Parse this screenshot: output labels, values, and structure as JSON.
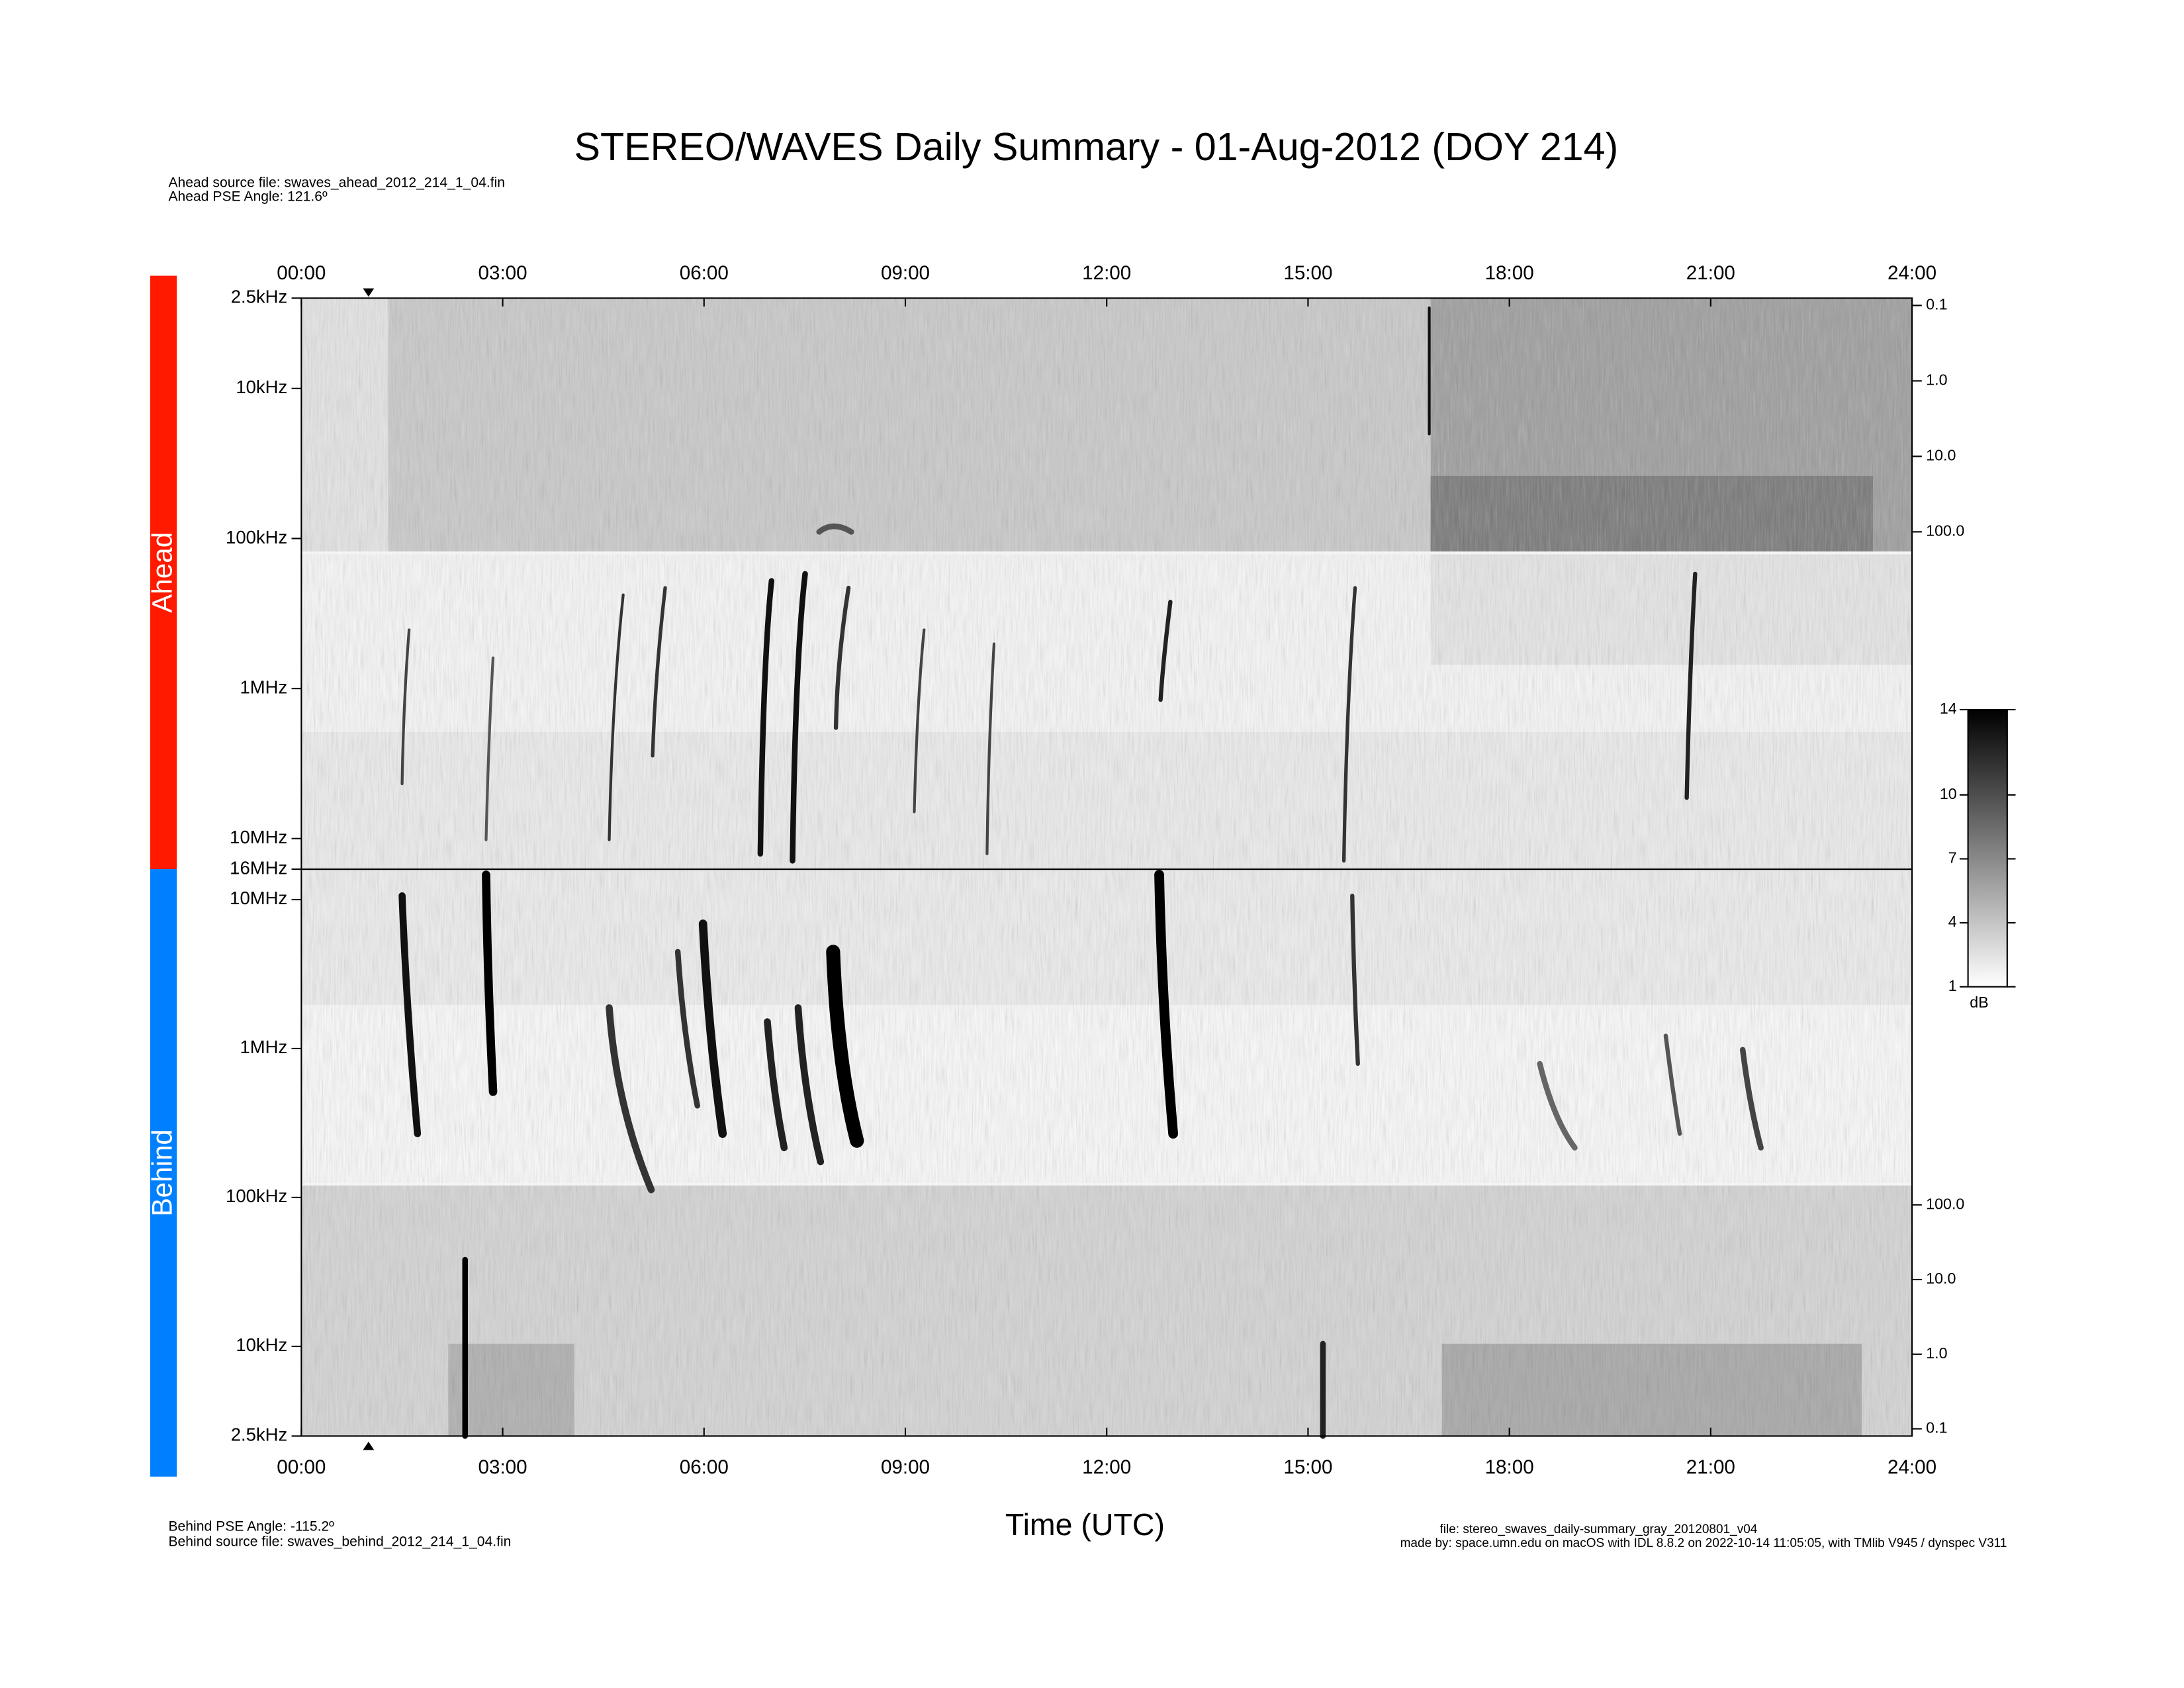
{
  "chart_data": {
    "type": "spectrogram",
    "title": "STEREO/WAVES Daily Summary - 01-Aug-2012 (DOY 214)",
    "xlabel": "Time (UTC)",
    "xlim": [
      0,
      24
    ],
    "xticks": [
      {
        "value": 0,
        "label": "00:00"
      },
      {
        "value": 3,
        "label": "03:00"
      },
      {
        "value": 6,
        "label": "06:00"
      },
      {
        "value": 9,
        "label": "09:00"
      },
      {
        "value": 12,
        "label": "12:00"
      },
      {
        "value": 15,
        "label": "15:00"
      },
      {
        "value": 18,
        "label": "18:00"
      },
      {
        "value": 21,
        "label": "21:00"
      },
      {
        "value": 24,
        "label": "24:00"
      }
    ],
    "panels": [
      {
        "name": "Ahead",
        "color": "#ff1a00",
        "log": true,
        "ylim": [
          16000000,
          2500
        ],
        "yticks": [
          {
            "value": 2500,
            "label": "2.5kHz"
          },
          {
            "value": 10000,
            "label": "10kHz"
          },
          {
            "value": 100000,
            "label": "100kHz"
          },
          {
            "value": 1000000,
            "label": "1MHz"
          },
          {
            "value": 10000000,
            "label": "10MHz"
          },
          {
            "value": 16000000,
            "label": "16MHz"
          }
        ],
        "y2lim": [
          190,
          0.08
        ],
        "y2ticks": [
          0.1,
          {
            "value": 1,
            "label": "1.0"
          },
          {
            "value": 10,
            "label": "10.0"
          },
          {
            "value": 100,
            "label": "100.0"
          }
        ]
      },
      {
        "name": "Behind",
        "color": "#0080ff",
        "log": true,
        "ylim": [
          2500,
          16000000
        ],
        "yticks": [
          {
            "value": 10000000,
            "label": "10MHz"
          },
          {
            "value": 1000000,
            "label": "1MHz"
          },
          {
            "value": 100000,
            "label": "100kHz"
          },
          {
            "value": 10000,
            "label": "10kHz"
          },
          {
            "value": 2500,
            "label": "2.5kHz"
          }
        ],
        "y2lim": [
          0.08,
          190
        ],
        "y2ticks": [
          {
            "value": 100,
            "label": "100.0"
          },
          {
            "value": 10,
            "label": "10.0"
          },
          {
            "value": 1,
            "label": "1.0"
          },
          0.1
        ]
      }
    ],
    "colorbar": {
      "label": "dB",
      "lim": [
        1,
        14
      ],
      "ticks": [
        1,
        4,
        7,
        10,
        14
      ]
    },
    "ahead_source": "Ahead source file: swaves_ahead_2012_214_1_04.fin",
    "ahead_angle": "Ahead PSE Angle:  121.6º",
    "behind_angle": "Behind PSE Angle: -115.2º",
    "behind_source": "Behind source file: swaves_behind_2012_214_1_04.fin",
    "file": "file: stereo_swaves_daily-summary_gray_20120801_v04",
    "made_by": "made by: space.umn.edu on macOS with IDL 8.8.2 on 2022-10-14 11:05:05, with TMlib V945 / dynspec V311"
  }
}
